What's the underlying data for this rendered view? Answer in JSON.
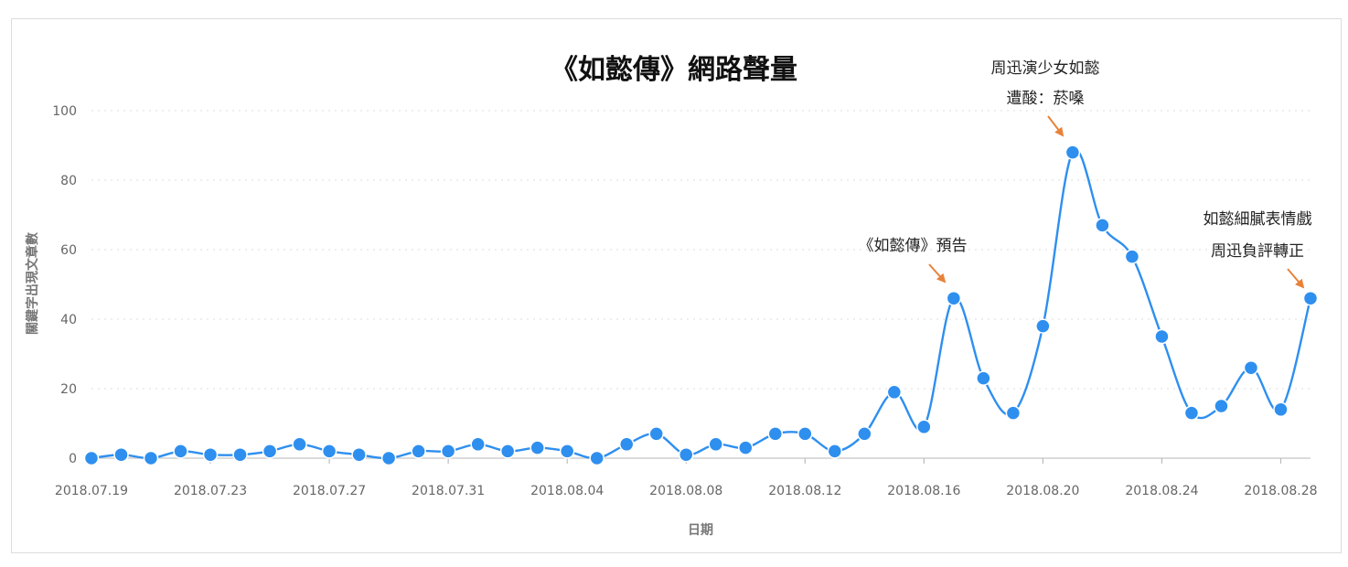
{
  "chart_data": {
    "type": "line",
    "title": "《如懿傳》網路聲量",
    "xlabel": "日期",
    "ylabel": "關鍵字出現文章數",
    "ylim": [
      0,
      100
    ],
    "yticks": [
      0,
      20,
      40,
      60,
      80,
      100
    ],
    "grid": true,
    "smooth": true,
    "x": [
      "2018.07.19",
      "2018.07.20",
      "2018.07.21",
      "2018.07.22",
      "2018.07.23",
      "2018.07.24",
      "2018.07.25",
      "2018.07.26",
      "2018.07.27",
      "2018.07.28",
      "2018.07.29",
      "2018.07.30",
      "2018.07.31",
      "2018.08.01",
      "2018.08.02",
      "2018.08.03",
      "2018.08.04",
      "2018.08.05",
      "2018.08.06",
      "2018.08.07",
      "2018.08.08",
      "2018.08.09",
      "2018.08.10",
      "2018.08.11",
      "2018.08.12",
      "2018.08.13",
      "2018.08.14",
      "2018.08.15",
      "2018.08.16",
      "2018.08.17",
      "2018.08.18",
      "2018.08.19",
      "2018.08.20",
      "2018.08.21",
      "2018.08.22",
      "2018.08.23",
      "2018.08.24",
      "2018.08.25",
      "2018.08.26",
      "2018.08.27",
      "2018.08.28",
      "2018.08.29"
    ],
    "xtick_labels": [
      "2018.07.19",
      "2018.07.23",
      "2018.07.27",
      "2018.07.31",
      "2018.08.04",
      "2018.08.08",
      "2018.08.12",
      "2018.08.16",
      "2018.08.20",
      "2018.08.24",
      "2018.08.28"
    ],
    "series": [
      {
        "name": "",
        "color": "#2e8fef",
        "values": [
          0,
          1,
          0,
          2,
          1,
          1,
          2,
          4,
          2,
          1,
          0,
          2,
          2,
          4,
          2,
          3,
          2,
          0,
          4,
          7,
          1,
          4,
          3,
          7,
          7,
          2,
          7,
          19,
          9,
          46,
          23,
          13,
          38,
          88,
          67,
          58,
          35,
          13,
          15,
          26,
          14,
          46
        ]
      }
    ],
    "annotations": [
      {
        "lines": [
          "《如懿傳》預告"
        ],
        "x": "2018.08.17",
        "y": 46
      },
      {
        "lines": [
          "周迅演少女如懿",
          "遭酸：菸嗓"
        ],
        "x": "2018.08.21",
        "y": 88
      },
      {
        "lines": [
          "如懿細膩表情戲",
          "周迅負評轉正"
        ],
        "x": "2018.08.29",
        "y": 46
      }
    ],
    "annotation_arrow_color": "#e8823a"
  }
}
